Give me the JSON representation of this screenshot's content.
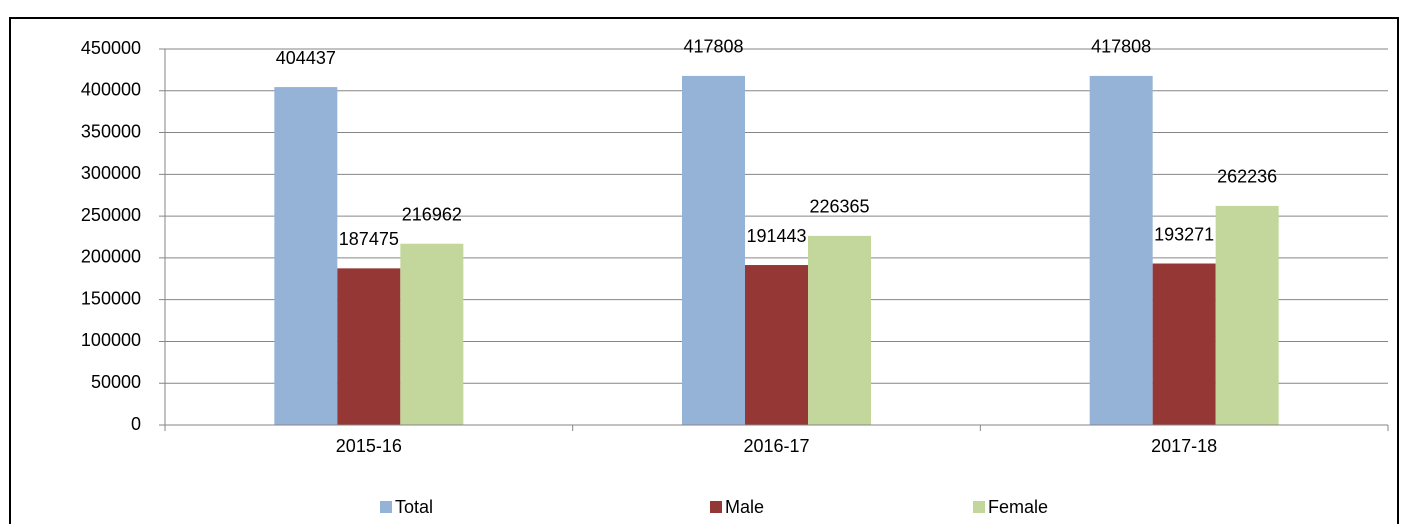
{
  "chart_data": {
    "type": "bar",
    "categories": [
      "2015-16",
      "2016-17",
      "2017-18"
    ],
    "series": [
      {
        "name": "Total",
        "color": "#95b3d7",
        "values": [
          404437,
          417808,
          417808
        ]
      },
      {
        "name": "Male",
        "color": "#953735",
        "values": [
          187475,
          191443,
          193271
        ]
      },
      {
        "name": "Female",
        "color": "#c3d69b",
        "values": [
          216962,
          226365,
          262236
        ]
      }
    ],
    "ylim": [
      0,
      450000
    ],
    "yticks": [
      0,
      50000,
      100000,
      150000,
      200000,
      250000,
      300000,
      350000,
      400000,
      450000
    ],
    "grid": true,
    "legend": "bottom"
  }
}
